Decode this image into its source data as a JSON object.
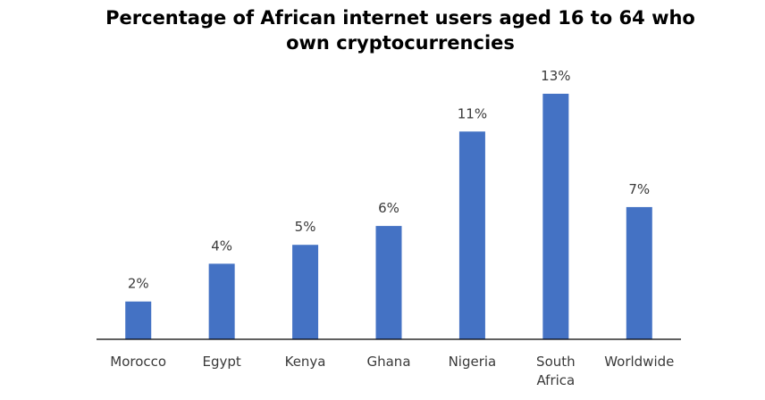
{
  "chart_data": {
    "type": "bar",
    "title_lines": [
      "Percentage of African internet users aged 16 to 64 who",
      "own cryptocurrencies"
    ],
    "categories": [
      [
        "Morocco"
      ],
      [
        "Egypt"
      ],
      [
        "Kenya"
      ],
      [
        "Ghana"
      ],
      [
        "Nigeria"
      ],
      [
        "South",
        "Africa"
      ],
      [
        "Worldwide"
      ]
    ],
    "values": [
      2,
      4,
      5,
      6,
      11,
      13,
      7
    ],
    "value_labels": [
      "2%",
      "4%",
      "5%",
      "6%",
      "11%",
      "13%",
      "7%"
    ],
    "unit": "%",
    "ylim": [
      0,
      13
    ],
    "bar_color": "#4472C4",
    "axis_color": "#000000",
    "grid": false,
    "legend": "none"
  }
}
